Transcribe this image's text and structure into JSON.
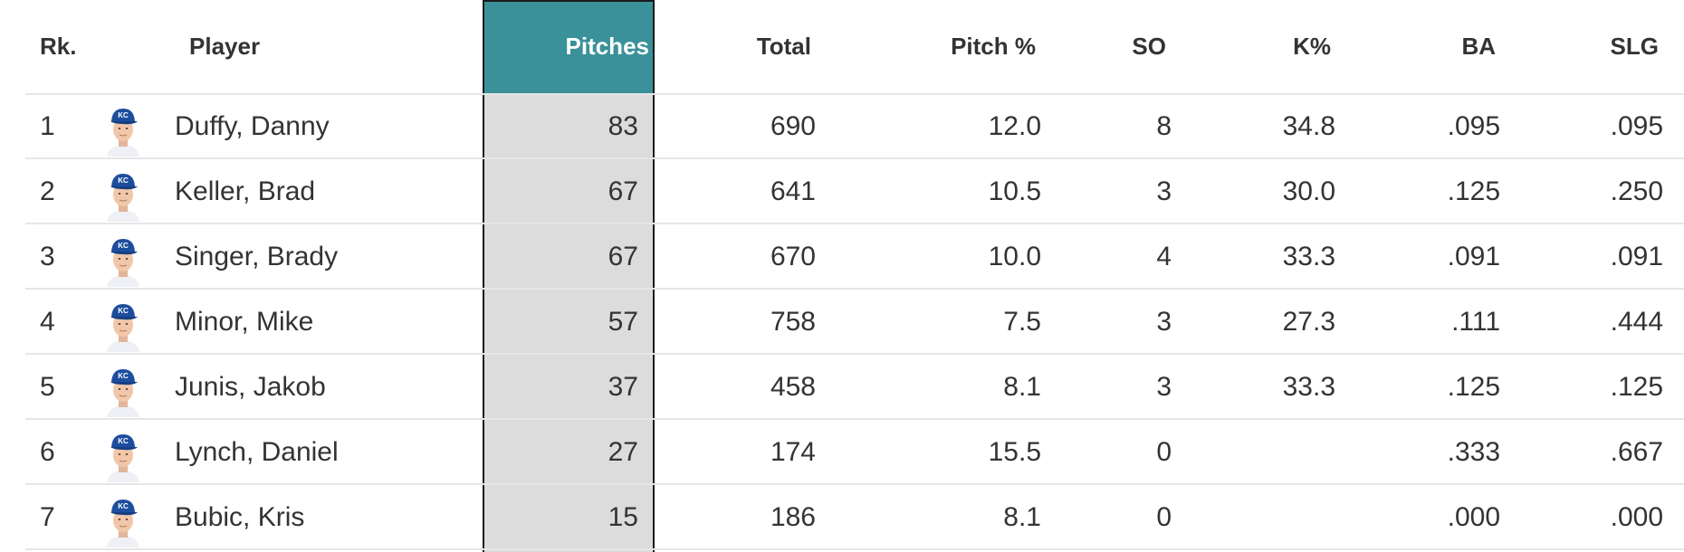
{
  "table": {
    "headers": {
      "rank": "Rk.",
      "player": "Player",
      "pitches": "Pitches",
      "total": "Total",
      "pitch_pct": "Pitch %",
      "so": "SO",
      "k_pct": "K%",
      "ba": "BA",
      "slg": "SLG"
    },
    "rows": [
      {
        "rank": "1",
        "player": "Duffy, Danny",
        "pitches": "83",
        "total": "690",
        "pitch_pct": "12.0",
        "so": "8",
        "k_pct": "34.8",
        "ba": ".095",
        "slg": ".095"
      },
      {
        "rank": "2",
        "player": "Keller, Brad",
        "pitches": "67",
        "total": "641",
        "pitch_pct": "10.5",
        "so": "3",
        "k_pct": "30.0",
        "ba": ".125",
        "slg": ".250"
      },
      {
        "rank": "3",
        "player": "Singer, Brady",
        "pitches": "67",
        "total": "670",
        "pitch_pct": "10.0",
        "so": "4",
        "k_pct": "33.3",
        "ba": ".091",
        "slg": ".091"
      },
      {
        "rank": "4",
        "player": "Minor, Mike",
        "pitches": "57",
        "total": "758",
        "pitch_pct": "7.5",
        "so": "3",
        "k_pct": "27.3",
        "ba": ".111",
        "slg": ".444"
      },
      {
        "rank": "5",
        "player": "Junis, Jakob",
        "pitches": "37",
        "total": "458",
        "pitch_pct": "8.1",
        "so": "3",
        "k_pct": "33.3",
        "ba": ".125",
        "slg": ".125"
      },
      {
        "rank": "6",
        "player": "Lynch, Daniel",
        "pitches": "27",
        "total": "174",
        "pitch_pct": "15.5",
        "so": "0",
        "k_pct": "",
        "ba": ".333",
        "slg": ".667"
      },
      {
        "rank": "7",
        "player": "Bubic, Kris",
        "pitches": "15",
        "total": "186",
        "pitch_pct": "8.1",
        "so": "0",
        "k_pct": "",
        "ba": ".000",
        "slg": ".000"
      }
    ]
  },
  "colors": {
    "sorted_header_bg": "#3a9199",
    "sorted_column_bg": "#dcdcdc",
    "cap_blue": "#1d4e9e"
  },
  "icons": {
    "avatar": "player-headshot-icon"
  }
}
